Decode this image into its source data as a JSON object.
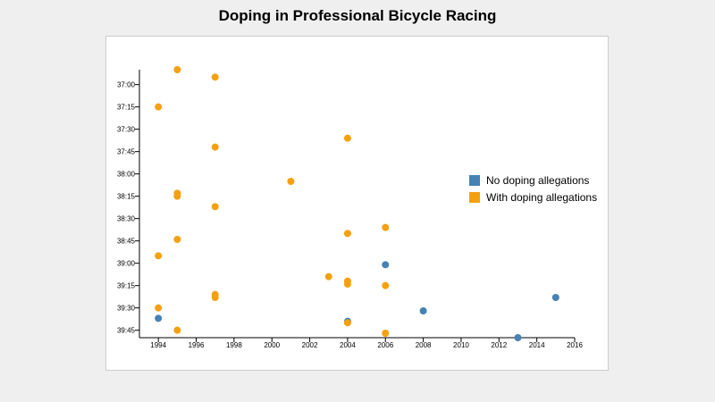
{
  "chart_data": {
    "type": "scatter",
    "title": "Doping in Professional Bicycle Racing",
    "xlabel": "",
    "ylabel": "",
    "xlim": [
      1993,
      2016
    ],
    "ylim": [
      "36:50",
      "39:50"
    ],
    "y_reversed": true,
    "x_ticks": [
      "1994",
      "1996",
      "1998",
      "2000",
      "2002",
      "2004",
      "2006",
      "2008",
      "2010",
      "2012",
      "2014",
      "2016"
    ],
    "y_ticks": [
      "37:00",
      "37:15",
      "37:30",
      "37:45",
      "38:00",
      "38:15",
      "38:30",
      "38:45",
      "39:00",
      "39:15",
      "39:30",
      "39:45"
    ],
    "grid": false,
    "legend_position": "right",
    "series": [
      {
        "name": "No doping allegations",
        "color": "#4682b4",
        "points": [
          [
            1994,
            "39:37"
          ],
          [
            2004,
            "39:39"
          ],
          [
            2006,
            "39:01"
          ],
          [
            2008,
            "39:32"
          ],
          [
            2013,
            "39:50"
          ],
          [
            2015,
            "39:23"
          ]
        ]
      },
      {
        "name": "With doping allegations",
        "color": "#f5a00f",
        "points": [
          [
            1995,
            "36:50"
          ],
          [
            1997,
            "36:55"
          ],
          [
            1994,
            "37:15"
          ],
          [
            2004,
            "37:36"
          ],
          [
            1997,
            "37:42"
          ],
          [
            2001,
            "38:05"
          ],
          [
            1995,
            "38:13"
          ],
          [
            1995,
            "38:15"
          ],
          [
            1997,
            "38:22"
          ],
          [
            2006,
            "38:36"
          ],
          [
            2004,
            "38:40"
          ],
          [
            1995,
            "38:44"
          ],
          [
            1994,
            "38:55"
          ],
          [
            2003,
            "39:09"
          ],
          [
            2004,
            "39:12"
          ],
          [
            2004,
            "39:14"
          ],
          [
            2006,
            "39:15"
          ],
          [
            1997,
            "39:21"
          ],
          [
            1997,
            "39:23"
          ],
          [
            1994,
            "39:30"
          ],
          [
            2004,
            "39:40"
          ],
          [
            1995,
            "39:45"
          ],
          [
            2006,
            "39:47"
          ]
        ]
      }
    ]
  }
}
